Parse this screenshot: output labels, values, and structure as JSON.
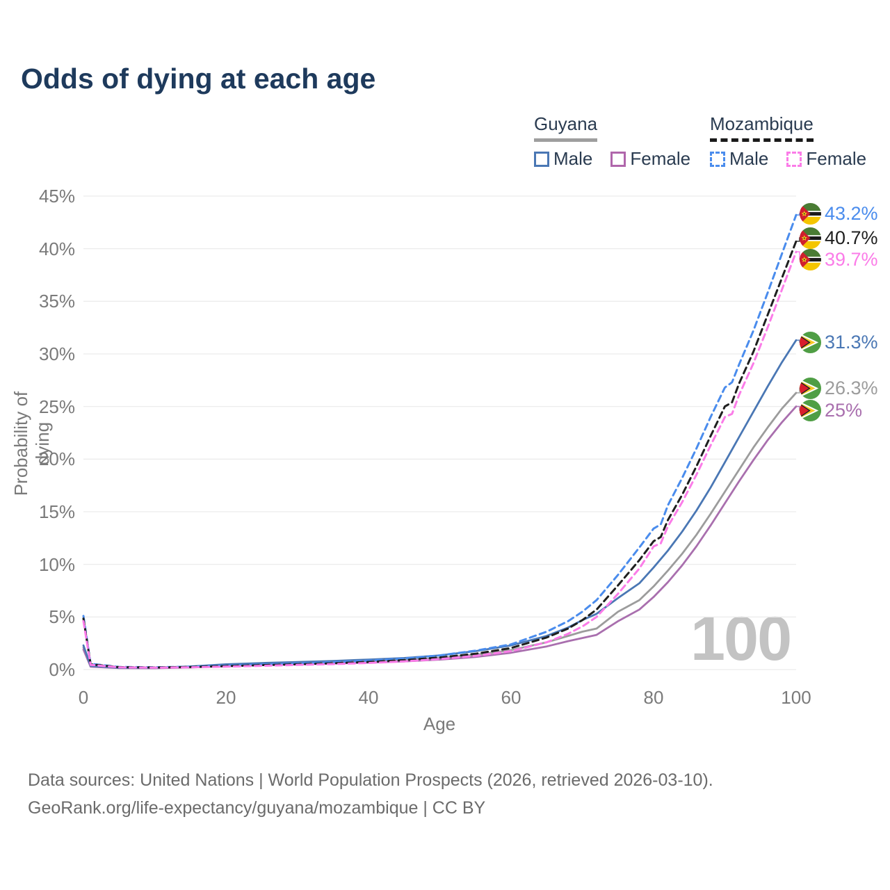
{
  "title": "Odds of dying at each age",
  "legend": {
    "groups": [
      {
        "country": "Guyana",
        "line_style": "solid",
        "underline_color": "#9e9e9e",
        "items": [
          {
            "label": "Male",
            "color": "#4a77b4"
          },
          {
            "label": "Female",
            "color": "#b066ab"
          }
        ]
      },
      {
        "country": "Mozambique",
        "line_style": "dashed",
        "underline_color": "#1a1a1a",
        "items": [
          {
            "label": "Male",
            "color": "#4a8ced"
          },
          {
            "label": "Female",
            "color": "#fb7ce8"
          }
        ]
      }
    ]
  },
  "watermark": "100",
  "footer": {
    "line1": "Data sources: United Nations | World Population Prospects (2026, retrieved 2026-03-10).",
    "line2": "GeoRank.org/life-expectancy/guyana/mozambique | CC BY"
  },
  "chart_data": {
    "type": "line",
    "title": "Odds of dying at each age",
    "xlabel": "Age",
    "ylabel": "Probability of dying",
    "xlim": [
      0,
      100
    ],
    "ylim_percent": [
      0,
      45
    ],
    "grid": "horizontal",
    "x_tick_labels": [
      "0",
      "20",
      "40",
      "60",
      "80",
      "100"
    ],
    "y_tick_labels": [
      "0%",
      "5%",
      "10%",
      "15%",
      "20%",
      "25%",
      "30%",
      "35%",
      "40%",
      "45%"
    ],
    "y_grid_values": [
      0,
      5,
      10,
      15,
      20,
      25,
      30,
      35,
      40,
      45
    ],
    "legend_position": "top-right",
    "series": [
      {
        "name": "Mozambique Male",
        "country": "Mozambique",
        "sex": "male",
        "color": "#4a8ced",
        "dash": true,
        "end_label": "43.2%",
        "end_value_percent": 43.2,
        "points": [
          [
            0,
            5.1
          ],
          [
            1,
            0.55
          ],
          [
            5,
            0.25
          ],
          [
            10,
            0.22
          ],
          [
            15,
            0.28
          ],
          [
            20,
            0.38
          ],
          [
            25,
            0.48
          ],
          [
            30,
            0.58
          ],
          [
            35,
            0.7
          ],
          [
            40,
            0.85
          ],
          [
            45,
            1.05
          ],
          [
            50,
            1.35
          ],
          [
            55,
            1.8
          ],
          [
            60,
            2.4
          ],
          [
            65,
            3.6
          ],
          [
            68,
            4.6
          ],
          [
            70,
            5.5
          ],
          [
            72,
            6.6
          ],
          [
            75,
            9.0
          ],
          [
            78,
            11.6
          ],
          [
            80,
            13.4
          ],
          [
            81,
            13.8
          ],
          [
            82,
            15.6
          ],
          [
            84,
            18.2
          ],
          [
            86,
            21.0
          ],
          [
            88,
            24.0
          ],
          [
            90,
            26.8
          ],
          [
            91,
            27.3
          ],
          [
            92,
            29.0
          ],
          [
            94,
            32.2
          ],
          [
            96,
            35.8
          ],
          [
            98,
            39.5
          ],
          [
            100,
            43.2
          ]
        ]
      },
      {
        "name": "Mozambique (both sexes)",
        "country": "Mozambique",
        "sex": "both",
        "color": "#1f1f1f",
        "dash": true,
        "end_label": "40.7%",
        "end_value_percent": 40.7,
        "points": [
          [
            0,
            4.85
          ],
          [
            1,
            0.5
          ],
          [
            5,
            0.23
          ],
          [
            10,
            0.2
          ],
          [
            15,
            0.25
          ],
          [
            20,
            0.33
          ],
          [
            25,
            0.42
          ],
          [
            30,
            0.5
          ],
          [
            35,
            0.6
          ],
          [
            40,
            0.73
          ],
          [
            45,
            0.9
          ],
          [
            50,
            1.15
          ],
          [
            55,
            1.5
          ],
          [
            60,
            2.05
          ],
          [
            65,
            3.05
          ],
          [
            68,
            3.9
          ],
          [
            70,
            4.7
          ],
          [
            72,
            5.7
          ],
          [
            75,
            8.0
          ],
          [
            78,
            10.4
          ],
          [
            80,
            12.2
          ],
          [
            81,
            12.6
          ],
          [
            82,
            14.2
          ],
          [
            84,
            16.6
          ],
          [
            86,
            19.3
          ],
          [
            88,
            22.2
          ],
          [
            90,
            25.0
          ],
          [
            91,
            25.4
          ],
          [
            92,
            27.2
          ],
          [
            94,
            30.2
          ],
          [
            96,
            33.7
          ],
          [
            98,
            37.2
          ],
          [
            100,
            40.7
          ]
        ]
      },
      {
        "name": "Mozambique Female",
        "country": "Mozambique",
        "sex": "female",
        "color": "#fb7ce8",
        "dash": true,
        "end_label": "39.7%",
        "end_value_percent": 39.7,
        "points": [
          [
            0,
            4.6
          ],
          [
            1,
            0.45
          ],
          [
            5,
            0.21
          ],
          [
            10,
            0.18
          ],
          [
            15,
            0.22
          ],
          [
            20,
            0.28
          ],
          [
            25,
            0.36
          ],
          [
            30,
            0.44
          ],
          [
            35,
            0.52
          ],
          [
            40,
            0.63
          ],
          [
            45,
            0.78
          ],
          [
            50,
            1.0
          ],
          [
            55,
            1.3
          ],
          [
            60,
            1.75
          ],
          [
            65,
            2.6
          ],
          [
            68,
            3.4
          ],
          [
            70,
            4.1
          ],
          [
            72,
            5.0
          ],
          [
            75,
            7.2
          ],
          [
            78,
            9.6
          ],
          [
            80,
            11.7
          ],
          [
            81,
            12.0
          ],
          [
            82,
            13.6
          ],
          [
            84,
            15.9
          ],
          [
            86,
            18.5
          ],
          [
            88,
            21.3
          ],
          [
            90,
            24.0
          ],
          [
            91,
            24.3
          ],
          [
            92,
            26.1
          ],
          [
            94,
            29.1
          ],
          [
            96,
            32.5
          ],
          [
            98,
            36.1
          ],
          [
            100,
            39.7
          ]
        ]
      },
      {
        "name": "Guyana Male",
        "country": "Guyana",
        "sex": "male",
        "color": "#4a77b4",
        "dash": false,
        "end_label": "31.3%",
        "end_value_percent": 31.3,
        "points": [
          [
            0,
            2.3
          ],
          [
            1,
            0.35
          ],
          [
            5,
            0.18
          ],
          [
            10,
            0.17
          ],
          [
            15,
            0.3
          ],
          [
            20,
            0.5
          ],
          [
            25,
            0.62
          ],
          [
            30,
            0.72
          ],
          [
            35,
            0.82
          ],
          [
            40,
            0.95
          ],
          [
            45,
            1.1
          ],
          [
            50,
            1.35
          ],
          [
            55,
            1.75
          ],
          [
            60,
            2.3
          ],
          [
            65,
            3.2
          ],
          [
            68,
            4.0
          ],
          [
            70,
            4.7
          ],
          [
            72,
            5.3
          ],
          [
            75,
            6.8
          ],
          [
            78,
            8.2
          ],
          [
            80,
            9.7
          ],
          [
            82,
            11.3
          ],
          [
            84,
            13.1
          ],
          [
            86,
            15.1
          ],
          [
            88,
            17.3
          ],
          [
            90,
            19.7
          ],
          [
            92,
            22.1
          ],
          [
            94,
            24.5
          ],
          [
            96,
            26.9
          ],
          [
            98,
            29.2
          ],
          [
            100,
            31.3
          ]
        ]
      },
      {
        "name": "Guyana (both sexes)",
        "country": "Guyana",
        "sex": "both",
        "color": "#9c9c9c",
        "dash": false,
        "end_label": "26.3%",
        "end_value_percent": 26.3,
        "points": [
          [
            0,
            2.1
          ],
          [
            1,
            0.3
          ],
          [
            5,
            0.16
          ],
          [
            10,
            0.15
          ],
          [
            15,
            0.25
          ],
          [
            20,
            0.4
          ],
          [
            25,
            0.5
          ],
          [
            30,
            0.58
          ],
          [
            35,
            0.66
          ],
          [
            40,
            0.76
          ],
          [
            45,
            0.9
          ],
          [
            50,
            1.1
          ],
          [
            55,
            1.4
          ],
          [
            60,
            1.85
          ],
          [
            65,
            2.6
          ],
          [
            68,
            3.2
          ],
          [
            70,
            3.6
          ],
          [
            72,
            3.9
          ],
          [
            75,
            5.5
          ],
          [
            78,
            6.6
          ],
          [
            80,
            7.9
          ],
          [
            82,
            9.4
          ],
          [
            84,
            11.0
          ],
          [
            86,
            12.8
          ],
          [
            88,
            14.8
          ],
          [
            90,
            16.9
          ],
          [
            92,
            19.0
          ],
          [
            94,
            21.1
          ],
          [
            96,
            23.0
          ],
          [
            98,
            24.8
          ],
          [
            100,
            26.3
          ]
        ]
      },
      {
        "name": "Guyana Female",
        "country": "Guyana",
        "sex": "female",
        "color": "#a96fae",
        "dash": false,
        "end_label": "25%",
        "end_value_percent": 25,
        "points": [
          [
            0,
            1.9
          ],
          [
            1,
            0.28
          ],
          [
            5,
            0.14
          ],
          [
            10,
            0.13
          ],
          [
            15,
            0.2
          ],
          [
            20,
            0.32
          ],
          [
            25,
            0.42
          ],
          [
            30,
            0.5
          ],
          [
            35,
            0.58
          ],
          [
            40,
            0.66
          ],
          [
            45,
            0.78
          ],
          [
            50,
            0.95
          ],
          [
            55,
            1.2
          ],
          [
            60,
            1.6
          ],
          [
            65,
            2.2
          ],
          [
            68,
            2.7
          ],
          [
            70,
            3.0
          ],
          [
            72,
            3.3
          ],
          [
            75,
            4.6
          ],
          [
            78,
            5.7
          ],
          [
            80,
            6.9
          ],
          [
            82,
            8.3
          ],
          [
            84,
            9.9
          ],
          [
            86,
            11.7
          ],
          [
            88,
            13.7
          ],
          [
            90,
            15.8
          ],
          [
            92,
            17.9
          ],
          [
            94,
            19.9
          ],
          [
            96,
            21.8
          ],
          [
            98,
            23.5
          ],
          [
            100,
            25
          ]
        ]
      }
    ]
  }
}
